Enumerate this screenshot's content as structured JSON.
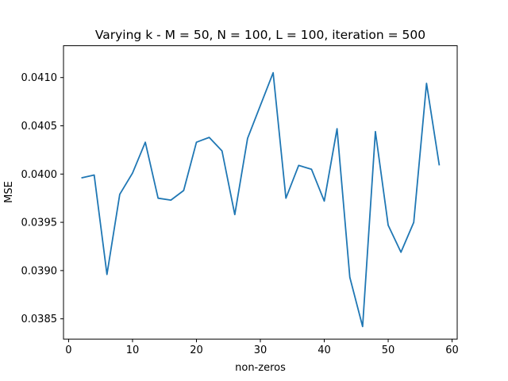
{
  "chart_data": {
    "type": "line",
    "title": "Varying k - M = 50, N = 100, L = 100, iteration = 500",
    "xlabel": "non-zeros",
    "ylabel": "MSE",
    "xlim": [
      -0.8,
      60.8
    ],
    "ylim": [
      0.03829,
      0.04133
    ],
    "xticks": [
      0,
      10,
      20,
      30,
      40,
      50,
      60
    ],
    "xtick_labels": [
      "0",
      "10",
      "20",
      "30",
      "40",
      "50",
      "60"
    ],
    "yticks": [
      0.0385,
      0.039,
      0.0395,
      0.04,
      0.0405,
      0.041
    ],
    "ytick_labels": [
      "0.0385",
      "0.0390",
      "0.0395",
      "0.0400",
      "0.0405",
      "0.0410"
    ],
    "grid": false,
    "line_color": "#1f77b4",
    "series": [
      {
        "x": [
          2,
          4,
          6,
          8,
          10,
          12,
          14,
          16,
          18,
          20,
          22,
          24,
          26,
          28,
          30,
          32,
          34,
          36,
          38,
          40,
          42,
          44,
          46,
          48,
          50,
          52,
          54,
          56,
          58
        ],
        "values": [
          0.03996,
          0.03999,
          0.03896,
          0.03979,
          0.04001,
          0.04033,
          0.03975,
          0.03973,
          0.03983,
          0.04033,
          0.04038,
          0.04024,
          0.03958,
          0.04037,
          0.04071,
          0.04105,
          0.03975,
          0.04009,
          0.04005,
          0.03972,
          0.04047,
          0.03893,
          0.03842,
          0.04044,
          0.03947,
          0.03919,
          0.0395,
          0.04094,
          0.04009
        ]
      }
    ]
  }
}
